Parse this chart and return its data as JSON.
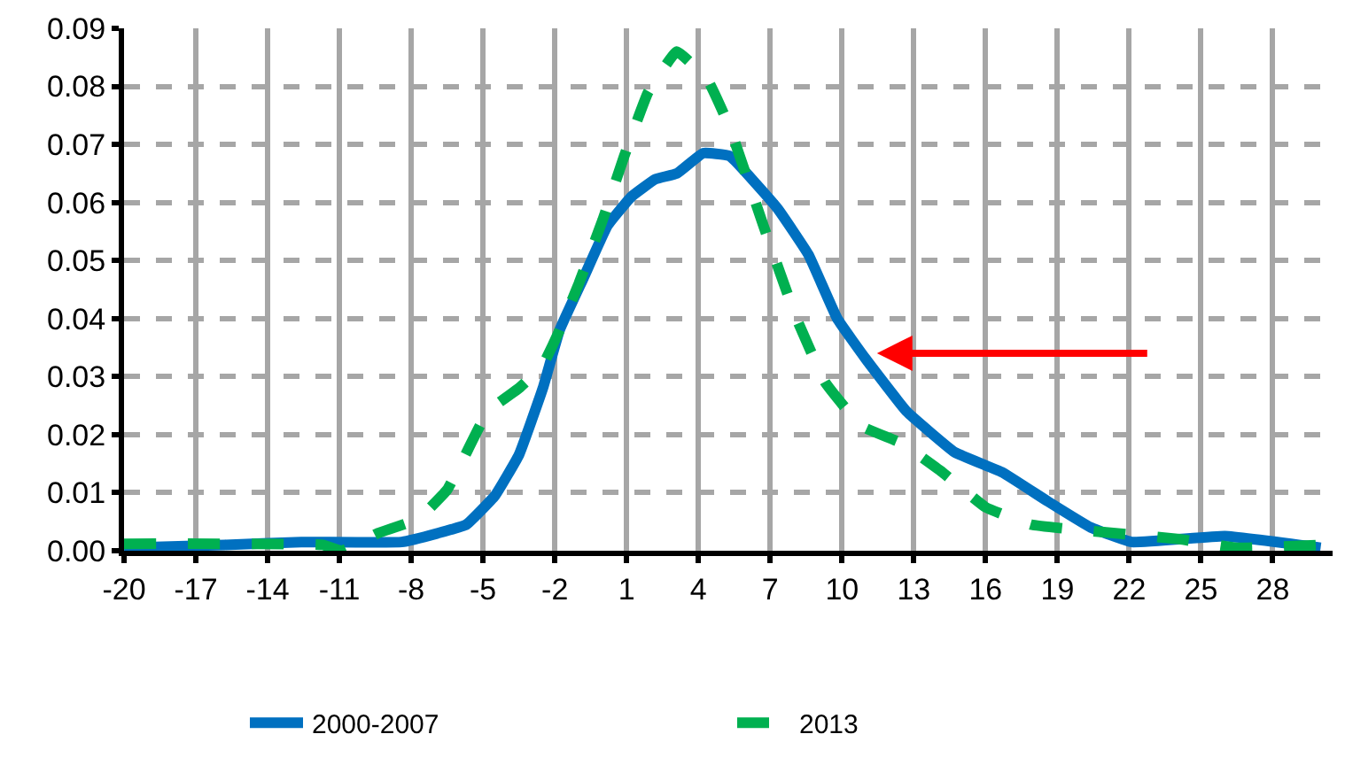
{
  "chart_data": {
    "type": "line",
    "xlim": [
      -20,
      30.5
    ],
    "xticks": [
      -20,
      -17,
      -14,
      -11,
      -8,
      -5,
      -2,
      1,
      4,
      7,
      10,
      13,
      16,
      19,
      22,
      25,
      28
    ],
    "ylim": [
      0,
      0.09
    ],
    "yticks": [
      {
        "value": 0,
        "label": "0.00"
      },
      {
        "value": 0.01,
        "label": "0.01"
      },
      {
        "value": 0.02,
        "label": "0.02"
      },
      {
        "value": 0.03,
        "label": "0.03"
      },
      {
        "value": 0.04,
        "label": "0.04"
      },
      {
        "value": 0.05,
        "label": "0.05"
      },
      {
        "value": 0.06,
        "label": "0.06"
      },
      {
        "value": 0.07,
        "label": "0.07"
      },
      {
        "value": 0.08,
        "label": "0.08"
      },
      {
        "value": 0.09,
        "label": "0.09"
      }
    ],
    "grid": true,
    "legend": "bottom",
    "series": [
      {
        "name": "2000-2007",
        "color": "#0070c0",
        "line_style": "solid",
        "x": [
          -20,
          -15.8,
          -12.6,
          -8.4,
          -6.9,
          -5.7,
          -4.5,
          -3.5,
          -2.5,
          -1.8,
          -0.8,
          0.2,
          1.2,
          2.2,
          3.1,
          4.2,
          5.3,
          7.3,
          8.6,
          9.8,
          11.0,
          12.7,
          14.7,
          16.7,
          18.6,
          20.4,
          22.1,
          26.0,
          30.0
        ],
        "values": [
          0.0005,
          0.001,
          0.0015,
          0.0015,
          0.003,
          0.0045,
          0.0095,
          0.0165,
          0.028,
          0.038,
          0.047,
          0.056,
          0.061,
          0.064,
          0.065,
          0.0685,
          0.068,
          0.059,
          0.051,
          0.04,
          0.033,
          0.024,
          0.017,
          0.0135,
          0.0085,
          0.004,
          0.0015,
          0.0025,
          0.0005
        ]
      },
      {
        "name": "2013",
        "color": "#00b050",
        "line_style": "dashed",
        "x": [
          -20,
          -11.7,
          -10.9,
          -9.4,
          -7.7,
          -6.5,
          -5.8,
          -4.8,
          -3.5,
          -2.5,
          -1.8,
          -1.0,
          0.0,
          0.9,
          1.9,
          3.1,
          4.4,
          5.3,
          6.8,
          8.1,
          9.3,
          10.8,
          12.5,
          14.2,
          16.0,
          17.9,
          20.1,
          24.1,
          26.5,
          30.0
        ],
        "values": [
          0.0012,
          0.001,
          0.0,
          0.003,
          0.0055,
          0.0105,
          0.016,
          0.024,
          0.028,
          0.032,
          0.038,
          0.046,
          0.057,
          0.068,
          0.079,
          0.086,
          0.081,
          0.073,
          0.055,
          0.04,
          0.029,
          0.0215,
          0.0185,
          0.0135,
          0.0075,
          0.0045,
          0.0035,
          0.002,
          0.0005,
          0.001
        ]
      }
    ]
  }
}
